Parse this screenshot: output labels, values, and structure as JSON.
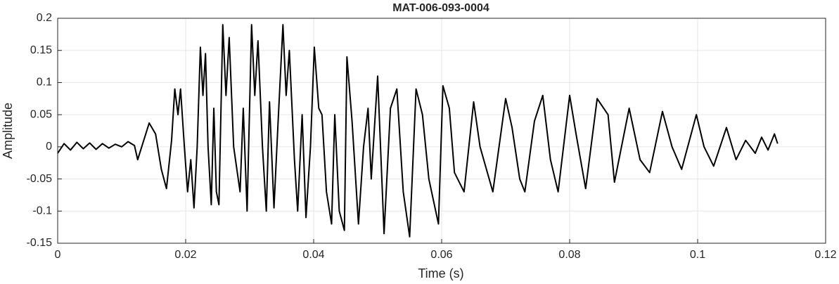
{
  "chart_data": {
    "type": "line",
    "title": "MAT-006-093-0004",
    "x_label": "Time (s)",
    "y_label": "Amplitude",
    "xlim": [
      0,
      0.12
    ],
    "ylim": [
      -0.15,
      0.2
    ],
    "xticks": [
      0,
      0.02,
      0.04,
      0.06,
      0.08,
      0.1,
      0.12
    ],
    "yticks": [
      -0.15,
      -0.1,
      -0.05,
      0,
      0.05,
      0.1,
      0.15,
      0.2
    ],
    "grid": true,
    "color": "#000000",
    "x": [
      0,
      0.001,
      0.002,
      0.003,
      0.004,
      0.005,
      0.006,
      0.007,
      0.008,
      0.009,
      0.01,
      0.011,
      0.012,
      0.0125,
      0.0143,
      0.0153,
      0.0162,
      0.017,
      0.0178,
      0.0183,
      0.0188,
      0.0192,
      0.0198,
      0.0203,
      0.0208,
      0.0213,
      0.0218,
      0.0223,
      0.0227,
      0.0231,
      0.0235,
      0.024,
      0.0244,
      0.0248,
      0.0252,
      0.0258,
      0.0263,
      0.0268,
      0.0275,
      0.0285,
      0.029,
      0.0296,
      0.0303,
      0.0308,
      0.0313,
      0.032,
      0.0326,
      0.0331,
      0.0338,
      0.0344,
      0.0352,
      0.0357,
      0.0362,
      0.037,
      0.0375,
      0.0382,
      0.0388,
      0.0395,
      0.0401,
      0.0408,
      0.0413,
      0.042,
      0.0428,
      0.0433,
      0.044,
      0.0448,
      0.0452,
      0.046,
      0.047,
      0.0478,
      0.0485,
      0.049,
      0.05,
      0.051,
      0.052,
      0.053,
      0.054,
      0.055,
      0.056,
      0.057,
      0.058,
      0.0595,
      0.0602,
      0.0612,
      0.062,
      0.0635,
      0.065,
      0.066,
      0.068,
      0.07,
      0.071,
      0.0722,
      0.073,
      0.0745,
      0.0758,
      0.077,
      0.0782,
      0.08,
      0.081,
      0.0825,
      0.0843,
      0.086,
      0.087,
      0.0893,
      0.091,
      0.0925,
      0.0945,
      0.096,
      0.0975,
      0.0998,
      0.101,
      0.1025,
      0.1045,
      0.106,
      0.1075,
      0.109,
      0.11,
      0.111,
      0.112,
      0.1125
    ],
    "values": [
      -0.01,
      0.005,
      -0.005,
      0.007,
      -0.003,
      0.006,
      -0.004,
      0.005,
      -0.002,
      0.004,
      0,
      0.008,
      0.002,
      -0.02,
      0.037,
      0.02,
      -0.035,
      -0.065,
      0.01,
      0.09,
      0.05,
      0.09,
      0,
      -0.07,
      -0.02,
      -0.095,
      0,
      0.155,
      0.08,
      0.145,
      0,
      -0.09,
      0.06,
      -0.07,
      -0.09,
      0.19,
      0.08,
      0.17,
      0,
      -0.07,
      0.06,
      -0.1,
      0.19,
      0.08,
      0.165,
      0,
      -0.1,
      0.07,
      -0.095,
      0.03,
      0.19,
      0.08,
      0.15,
      -0.02,
      -0.1,
      0.05,
      -0.11,
      0,
      0.155,
      0.06,
      0.05,
      -0.07,
      -0.12,
      0.05,
      -0.1,
      -0.13,
      0.14,
      0.04,
      -0.12,
      0,
      0.06,
      -0.05,
      0.11,
      -0.135,
      0.06,
      0.09,
      -0.07,
      -0.14,
      0.09,
      0.05,
      -0.05,
      -0.12,
      0.095,
      0.06,
      -0.04,
      -0.07,
      0.07,
      0,
      -0.07,
      0.075,
      0.03,
      -0.05,
      -0.07,
      0.04,
      0.08,
      -0.02,
      -0.07,
      0.08,
      0.02,
      -0.065,
      0.075,
      0.05,
      -0.055,
      0.06,
      -0.02,
      -0.04,
      0.055,
      0,
      -0.035,
      0.05,
      0,
      -0.03,
      0.03,
      -0.02,
      0.01,
      -0.01,
      0.015,
      -0.005,
      0.02,
      0.005
    ]
  }
}
